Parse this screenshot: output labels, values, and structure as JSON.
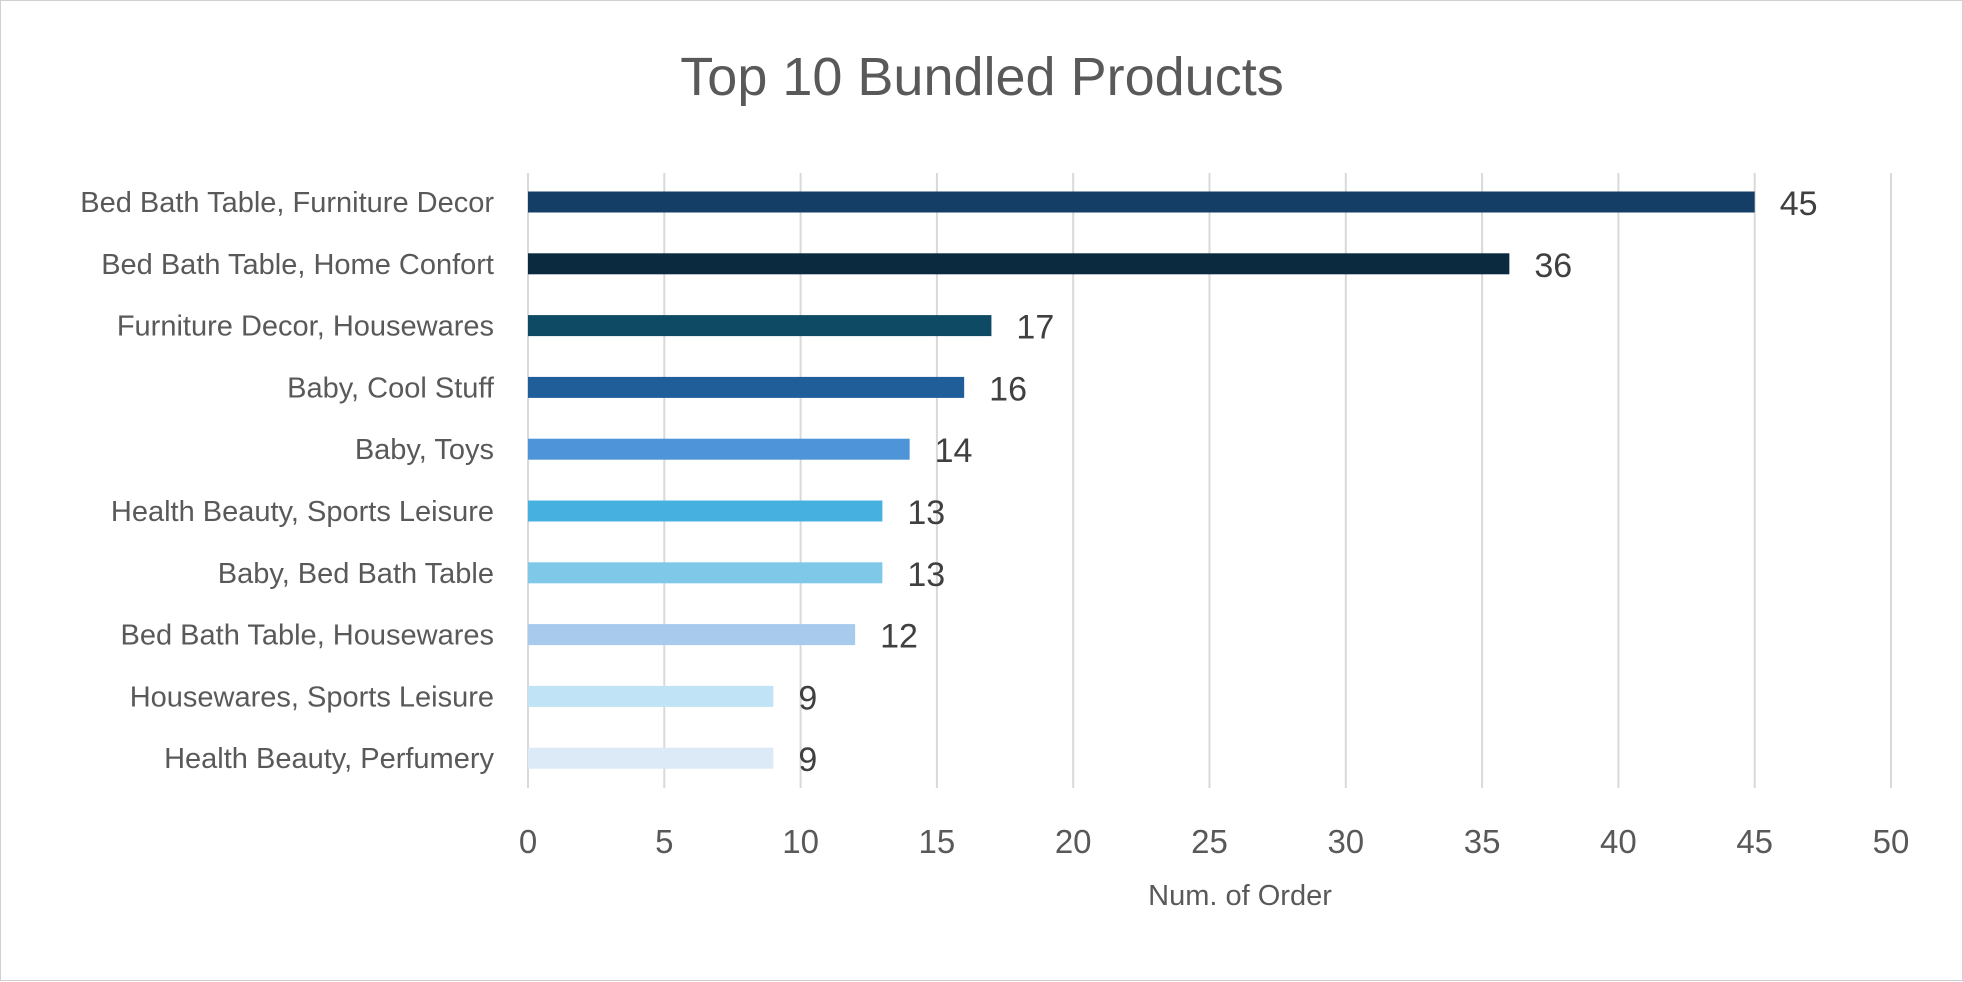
{
  "chart_data": {
    "type": "bar",
    "orientation": "horizontal",
    "title": "Top 10 Bundled Products",
    "xlabel": "Num. of Order",
    "ylabel": "",
    "xlim": [
      0,
      50
    ],
    "xticks": [
      "0",
      "5",
      "10",
      "15",
      "20",
      "25",
      "30",
      "35",
      "40",
      "45",
      "50"
    ],
    "grid": true,
    "legend": "none",
    "categories": [
      "Bed Bath Table, Furniture Decor",
      "Bed Bath Table, Home Confort",
      "Furniture Decor, Housewares",
      "Baby, Cool Stuff",
      "Baby, Toys",
      "Health Beauty, Sports Leisure",
      "Baby, Bed Bath Table",
      "Bed Bath Table, Housewares",
      "Housewares, Sports Leisure",
      "Health Beauty, Perfumery"
    ],
    "values": [
      45,
      36,
      17,
      16,
      14,
      13,
      13,
      12,
      9,
      9
    ],
    "data_labels": [
      "45",
      "36",
      "17",
      "16",
      "14",
      "13",
      "13",
      "12",
      "9",
      "9"
    ],
    "colors": [
      "#153e66",
      "#0b2a3f",
      "#0e4a63",
      "#1f5e99",
      "#4e94d9",
      "#46b1e1",
      "#80c8e8",
      "#a7caed",
      "#c0e4f5",
      "#dce9f7"
    ]
  }
}
